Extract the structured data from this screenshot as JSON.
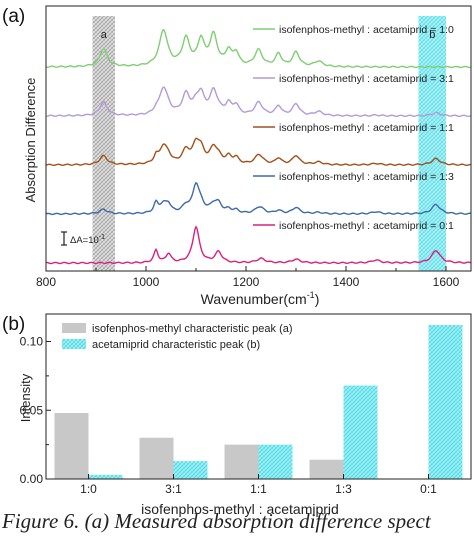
{
  "chart_data": [
    {
      "panel_label": "(a)",
      "type": "line",
      "xlabel": "Wavenumber(cm",
      "xlabel_sup": "-1",
      "xlabel_close": ")",
      "ylabel": "Absorption Difference",
      "xlim": [
        800,
        1650
      ],
      "xticks": [
        "800",
        "1000",
        "1200",
        "1400",
        "1600"
      ],
      "xtick_values": [
        800,
        1000,
        1200,
        1400,
        1600
      ],
      "scale_bar": {
        "label": "ΔA=10",
        "sup": "-1"
      },
      "bands": [
        {
          "label": "a",
          "range": [
            893,
            938
          ],
          "color": "#b0b0b0"
        },
        {
          "label": "b",
          "range": [
            1545,
            1600
          ],
          "color": "#5fe3ee"
        }
      ],
      "series": [
        {
          "name": "isofenphos-methyl : acetamiprid = 1:0",
          "color": "#7fce72",
          "offset": 4.0,
          "peaks_ratio": 1.0
        },
        {
          "name": "isofenphos-methyl : acetamiprid = 3:1",
          "color": "#b39ad8",
          "offset": 3.0,
          "peaks_ratio": 0.75
        },
        {
          "name": "isofenphos-methyl : acetamiprid = 1:1",
          "color": "#a0521a",
          "offset": 2.0,
          "peaks_ratio": 0.5
        },
        {
          "name": "isofenphos-methyl : acetamiprid = 1:3",
          "color": "#3d6aa8",
          "offset": 1.0,
          "peaks_ratio": 0.25
        },
        {
          "name": "isofenphos-methyl : acetamiprid = 0:1",
          "color": "#d8217e",
          "offset": 0.0,
          "peaks_ratio": 0.0
        }
      ]
    },
    {
      "panel_label": "(b)",
      "type": "bar",
      "xlabel": "isofenphos-methyl : acetamiprid",
      "ylabel": "Intensity",
      "categories": [
        "1:0",
        "3:1",
        "1:1",
        "1:3",
        "0:1"
      ],
      "ylim": [
        0,
        0.12
      ],
      "yticks": [
        "0.00",
        "0.05",
        "0.10"
      ],
      "ytick_values": [
        0.0,
        0.05,
        0.1
      ],
      "series": [
        {
          "name": "isofenphos-methyl characteristic peak (a)",
          "color": "#c8c8c8",
          "values": [
            0.048,
            0.03,
            0.025,
            0.014,
            0.0
          ]
        },
        {
          "name": "acetamiprid characteristic peak (b)",
          "color": "#5fe3ee",
          "values": [
            0.003,
            0.013,
            0.025,
            0.068,
            0.112
          ]
        }
      ]
    }
  ],
  "caption": "Figure 6. (a) Measured absorption difference spect"
}
